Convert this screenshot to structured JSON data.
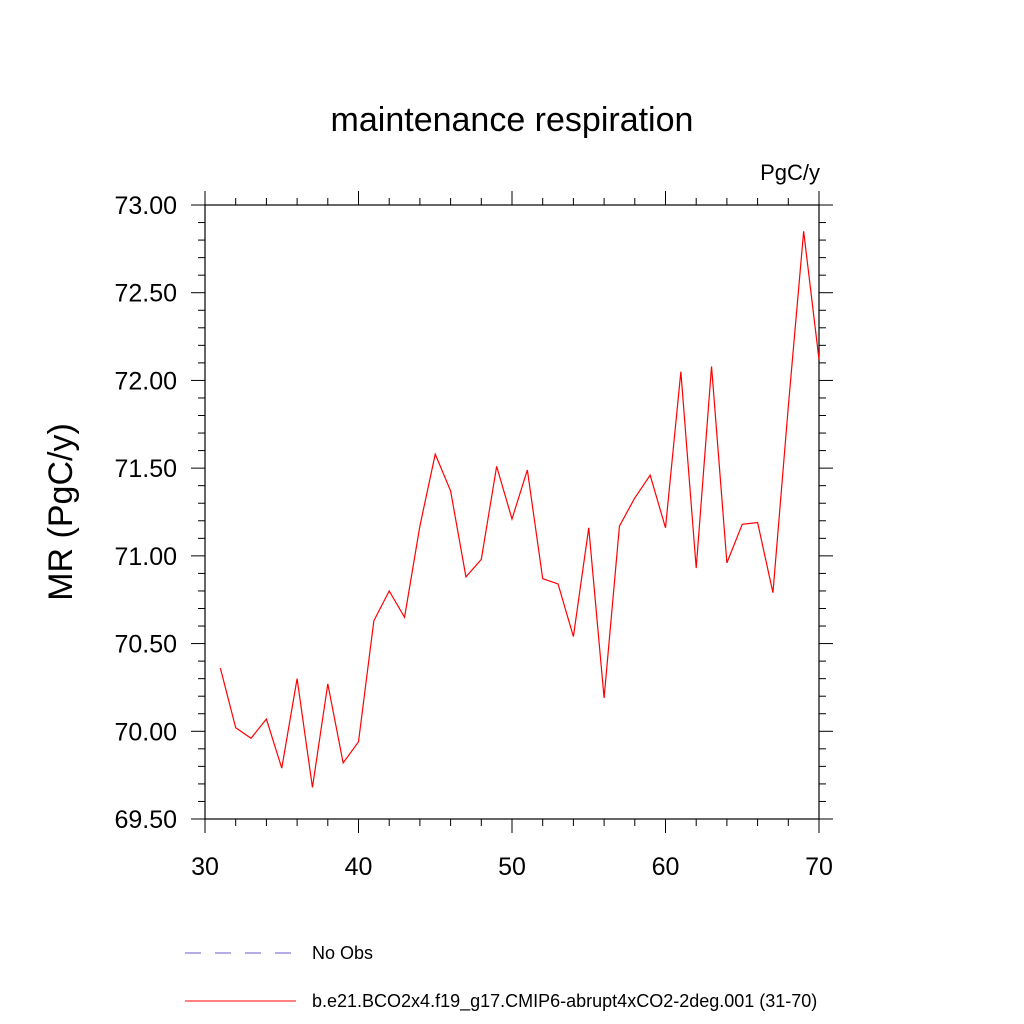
{
  "chart_data": {
    "type": "line",
    "title": "maintenance respiration",
    "units_label": "PgC/y",
    "ylabel": "MR  (PgC/y)",
    "xlabel": "",
    "xlim": [
      30,
      70
    ],
    "ylim": [
      69.5,
      73.0
    ],
    "x_ticks": [
      30,
      40,
      50,
      60,
      70
    ],
    "y_ticks": [
      "69.50",
      "70.00",
      "70.50",
      "71.00",
      "71.50",
      "72.00",
      "72.50",
      "73.00"
    ],
    "grid": false,
    "series": [
      {
        "name": "b.e21.BCO2x4.f19_g17.CMIP6-abrupt4xCO2-2deg.001 (31-70)",
        "color": "#ff0000",
        "style": "solid",
        "x": [
          31,
          32,
          33,
          34,
          35,
          36,
          37,
          38,
          39,
          40,
          41,
          42,
          43,
          44,
          45,
          46,
          47,
          48,
          49,
          50,
          51,
          52,
          53,
          54,
          55,
          56,
          57,
          58,
          59,
          60,
          61,
          62,
          63,
          64,
          65,
          66,
          67,
          68,
          69,
          70
        ],
        "values": [
          70.36,
          70.02,
          69.96,
          70.07,
          69.79,
          70.3,
          69.68,
          70.27,
          69.82,
          69.94,
          70.63,
          70.8,
          70.65,
          71.17,
          71.58,
          71.37,
          70.88,
          70.98,
          71.51,
          71.21,
          71.49,
          70.87,
          70.84,
          70.54,
          71.16,
          70.19,
          71.17,
          71.33,
          71.46,
          71.16,
          72.05,
          70.93,
          72.08,
          70.96,
          71.18,
          71.19,
          70.79,
          71.85,
          72.85,
          72.12
        ]
      }
    ],
    "legend": [
      {
        "label": "No Obs",
        "color": "#6a5acd",
        "style": "dashed"
      },
      {
        "label": "b.e21.BCO2x4.f19_g17.CMIP6-abrupt4xCO2-2deg.001 (31-70)",
        "color": "#ff0000",
        "style": "solid"
      }
    ]
  }
}
